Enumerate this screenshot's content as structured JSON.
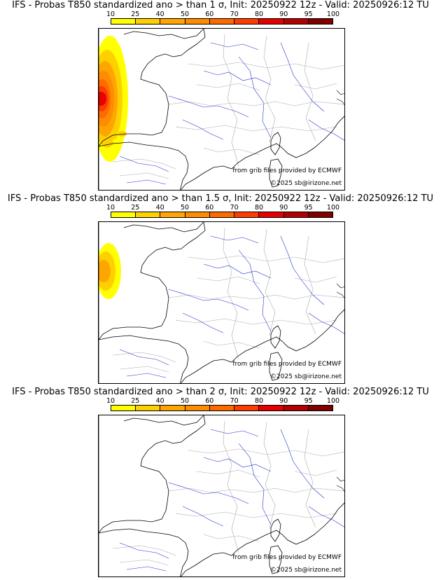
{
  "legend": {
    "ticks": [
      "10",
      "25",
      "40",
      "50",
      "60",
      "70",
      "80",
      "90",
      "95",
      "100"
    ],
    "colors": [
      "#ffff00",
      "#ffd000",
      "#ffa500",
      "#ff8c00",
      "#ff6a00",
      "#ff3c00",
      "#e60000",
      "#b30000",
      "#800000"
    ]
  },
  "panels": [
    {
      "title": "IFS - Probas T850  standardized ano > than 1 σ, Init: 20250922 12z - Valid: 20250926:12 TU",
      "anomaly": "strong"
    },
    {
      "title": "IFS - Probas T850  standardized ano > than 1.5 σ, Init: 20250922 12z - Valid: 20250926:12 TU",
      "anomaly": "weak"
    },
    {
      "title": "IFS - Probas T850  standardized ano > than 2 σ, Init: 20250922 12z - Valid: 20250926:12 TU",
      "anomaly": "none"
    }
  ],
  "credits": {
    "source": "from grib files provided by ECMWF",
    "copyright": "©2025 sb@irizone.net"
  }
}
